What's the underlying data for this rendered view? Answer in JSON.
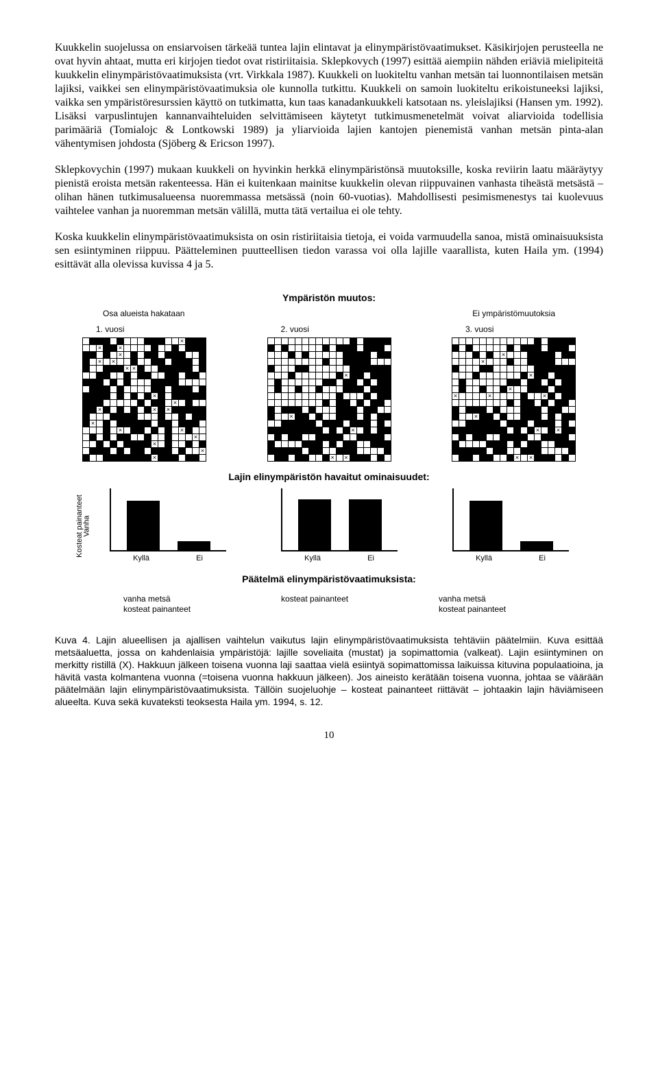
{
  "paragraphs": {
    "p1": "Kuukkelin suojelussa on ensiarvoisen tärkeää tuntea lajin elintavat ja elinympäristövaatimukset. Käsikirjojen perusteella ne ovat hyvin ahtaat, mutta eri kirjojen tiedot ovat ristiriitaisia. Sklepkovych (1997) esittää aiempiin nähden eriäviä mielipiteitä kuukkelin elinympäristövaatimuksista (vrt. Virkkala 1987). Kuukkeli on luokiteltu vanhan metsän tai luonnontilaisen metsän lajiksi, vaikkei sen elinympäristövaatimuksia ole kunnolla tutkittu. Kuukkeli on samoin luokiteltu erikoistuneeksi lajiksi, vaikka sen ympäristöresurssien käyttö on tutkimatta, kun taas kanadankuukkeli katsotaan ns. yleislajiksi (Hansen ym. 1992). Lisäksi varpuslintujen kannanvaihteluiden selvittämiseen käytetyt tutkimusmenetelmät voivat aliarvioida todellisia parimääriä (Tomialojc & Lontkowski 1989) ja yliarvioida lajien kantojen pienemistä vanhan metsän pinta-alan vähentymisen johdosta (Sjöberg & Ericson 1997).",
    "p2": "Sklepkovychin (1997) mukaan kuukkeli on hyvinkin herkkä elinympäristönsä muutoksille, koska reviirin laatu määräytyy pienistä eroista metsän rakenteessa. Hän ei kuitenkaan mainitse kuukkelin olevan riippuvainen vanhasta tiheästä metsästä – olihan hänen tutkimusalueensa nuoremmassa metsässä (noin 60-vuotias). Mahdollisesti pesimismenestys tai kuolevuus vaihtelee vanhan ja nuoremman metsän välillä, mutta tätä vertailua ei ole tehty.",
    "p3": "Koska kuukkelin elinympäristövaatimuksista on osin ristiriitaisia tietoja, ei voida varmuudella sanoa, mistä ominaisuuksista sen esiintyminen riippuu. Päätteleminen puutteellisen tiedon varassa voi olla lajille vaarallista, kuten Haila ym. (1994) esittävät alla olevissa kuvissa 4 ja 5."
  },
  "figure": {
    "title": "Ympäristön muutos:",
    "sub_left": "Osa alueista hakataan",
    "sub_right": "Ei ympäristömuutoksia",
    "years": [
      "1. vuosi",
      "2. vuosi",
      "3. vuosi"
    ],
    "grid_size": 18,
    "grid_seeds": [
      11,
      37,
      37
    ],
    "grid_clear_cut": [
      false,
      true,
      true
    ],
    "x_mark_density": [
      0.1,
      0.06,
      0.1
    ],
    "section2_title": "Lajin elinympäristön havaitut ominaisuudet:",
    "y_axis_outer": "Kosteat\npainanteet",
    "y_axis_first": "Vanha",
    "x_ticks": [
      "Kyllä",
      "Ei"
    ],
    "bars": [
      {
        "values": [
          80,
          14
        ]
      },
      {
        "values": [
          82,
          82
        ]
      },
      {
        "values": [
          80,
          14
        ]
      }
    ],
    "bar_color": "#000000",
    "section3_title": "Päätelmä elinympäristövaatimuksista:",
    "conclusions": [
      "vanha metsä\nkosteat painanteet",
      "kosteat painanteet",
      "vanha metsä\nkosteat painanteet"
    ]
  },
  "caption": "Kuva 4. Lajin alueellisen ja ajallisen vaihtelun vaikutus lajin elinympäristövaatimuksista tehtäviin päätelmiin. Kuva esittää metsäaluetta, jossa on kahdenlaisia ympäristöjä: lajille soveliaita (mustat) ja sopimattomia (valkeat). Lajin esiintyminen on merkitty ristillä (X). Hakkuun jälkeen toisena vuonna laji saattaa vielä esiintyä sopimattomissa laikuissa kituvina populaatioina, ja hävitä vasta kolmantena vuonna (=toisena vuonna hakkuun jälkeen). Jos aineisto kerätään toisena vuonna, johtaa se väärään päätelmään lajin elinympäristövaatimuksista. Tällöin suojeluohje – kosteat painanteet riittävät – johtaakin lajin häviämiseen alueelta. Kuva sekä kuvateksti teoksesta Haila ym. 1994, s. 12.",
  "page_number": "10"
}
